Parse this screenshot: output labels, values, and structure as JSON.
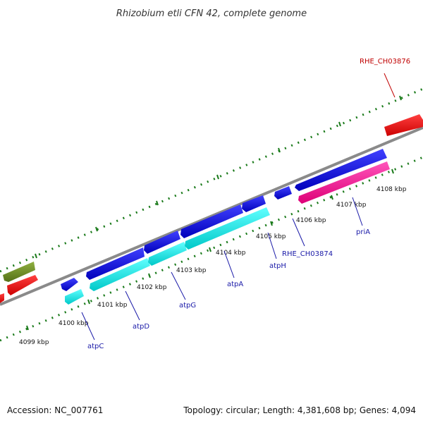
{
  "title": "Rhizobium etli CFN 42, complete genome",
  "footer": {
    "accession": "Accession: NC_007761",
    "topology": "Topology: circular; Length: 4,381,608 bp; Genes: 4,094"
  },
  "tick_labels": [
    "4099 kbp",
    "4100 kbp",
    "4101 kbp",
    "4102 kbp",
    "4103 kbp",
    "4104 kbp",
    "4105 kbp",
    "4106 kbp",
    "4107 kbp",
    "4108 kbp"
  ],
  "genes": {
    "atpC": "atpC",
    "atpD": "atpD",
    "atpG": "atpG",
    "atpA": "atpA",
    "atpH": "atpH",
    "rhe_ch03874": "RHE_CH03874",
    "priA": "priA",
    "rhe_ch03876": "RHE_CH03876"
  },
  "colors": {
    "forward_gene": "#0000dd",
    "reverse_gene": "#00e0e0",
    "misc_gene": "#ff1a99",
    "red_gene": "#ee0000",
    "olive_gene": "#6b8e23",
    "backbone": "#888888",
    "tick": "#1a7a1a"
  }
}
